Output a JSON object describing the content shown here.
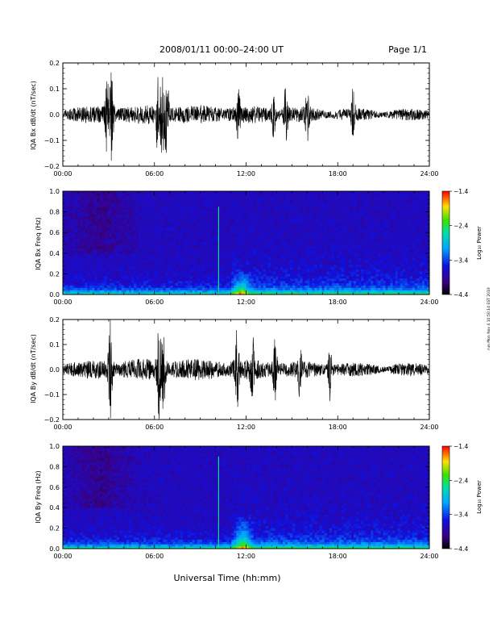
{
  "header": {
    "title": "2008/01/11  00:00–24:00 UT",
    "page": "Page 1/1"
  },
  "side_note": "run Mon Nov 4 10:50:14 EST 2019",
  "xaxis": {
    "label": "Universal Time (hh:mm)",
    "ticks": [
      "00:00",
      "06:00",
      "12:00",
      "18:00",
      "24:00"
    ],
    "range_hours": [
      0,
      24
    ]
  },
  "chart_data": [
    {
      "type": "line",
      "ylabel": "IQA Bx dB/dt (nT/sec)",
      "ylim": [
        -0.2,
        0.2
      ],
      "yticks": [
        "−0.2",
        "−0.1",
        "0.0",
        "0.1",
        "0.2"
      ],
      "baseline_amplitude_nT_per_s": 0.03,
      "events": [
        {
          "t_hours": 2.9,
          "peak": 0.17
        },
        {
          "t_hours": 3.2,
          "peak": 0.2
        },
        {
          "t_hours": 6.2,
          "peak": 0.13
        },
        {
          "t_hours": 6.5,
          "peak": 0.2
        },
        {
          "t_hours": 6.8,
          "peak": 0.2
        },
        {
          "t_hours": 11.5,
          "peak": 0.09
        },
        {
          "t_hours": 13.8,
          "peak": 0.1
        },
        {
          "t_hours": 14.6,
          "peak": 0.12
        },
        {
          "t_hours": 16.0,
          "peak": 0.11
        },
        {
          "t_hours": 19.0,
          "peak": 0.1
        }
      ],
      "color": "#000000"
    },
    {
      "type": "heatmap",
      "ylabel": "IQA Bx Freq (Hz)",
      "ylim": [
        0.0,
        1.0
      ],
      "yticks": [
        "0.0",
        "0.2",
        "0.4",
        "0.6",
        "0.8",
        "1.0"
      ],
      "colorbar": {
        "label": "Log₁₀ Power",
        "range": [
          -4.4,
          -1.4
        ],
        "ticks": [
          "−1.4",
          "−2.4",
          "−3.4",
          "−4.4"
        ]
      },
      "enhancements": [
        {
          "t_hours": 10.2,
          "freq_max": 0.85,
          "kind": "line"
        },
        {
          "t_hours": 11.7,
          "freq_max": 0.25,
          "kind": "burst"
        }
      ]
    },
    {
      "type": "line",
      "ylabel": "IQA By dB/dt (nT/sec)",
      "ylim": [
        -0.2,
        0.2
      ],
      "yticks": [
        "−0.2",
        "−0.1",
        "0.0",
        "0.1",
        "0.2"
      ],
      "baseline_amplitude_nT_per_s": 0.035,
      "events": [
        {
          "t_hours": 3.1,
          "peak": 0.2
        },
        {
          "t_hours": 6.3,
          "peak": 0.2
        },
        {
          "t_hours": 6.6,
          "peak": 0.17
        },
        {
          "t_hours": 11.4,
          "peak": 0.18
        },
        {
          "t_hours": 12.4,
          "peak": 0.13
        },
        {
          "t_hours": 13.9,
          "peak": 0.14
        },
        {
          "t_hours": 15.5,
          "peak": 0.13
        },
        {
          "t_hours": 17.5,
          "peak": 0.12
        }
      ],
      "color": "#000000"
    },
    {
      "type": "heatmap",
      "ylabel": "IQA By Freq (Hz)",
      "ylim": [
        0.0,
        1.0
      ],
      "yticks": [
        "0.0",
        "0.2",
        "0.4",
        "0.6",
        "0.8",
        "1.0"
      ],
      "colorbar": {
        "label": "Log₁₀ Power",
        "range": [
          -4.4,
          -1.4
        ],
        "ticks": [
          "−1.4",
          "−2.4",
          "−3.4",
          "−4.4"
        ]
      },
      "enhancements": [
        {
          "t_hours": 10.2,
          "freq_max": 0.9,
          "kind": "line"
        },
        {
          "t_hours": 11.8,
          "freq_max": 0.35,
          "kind": "burst"
        }
      ]
    }
  ]
}
